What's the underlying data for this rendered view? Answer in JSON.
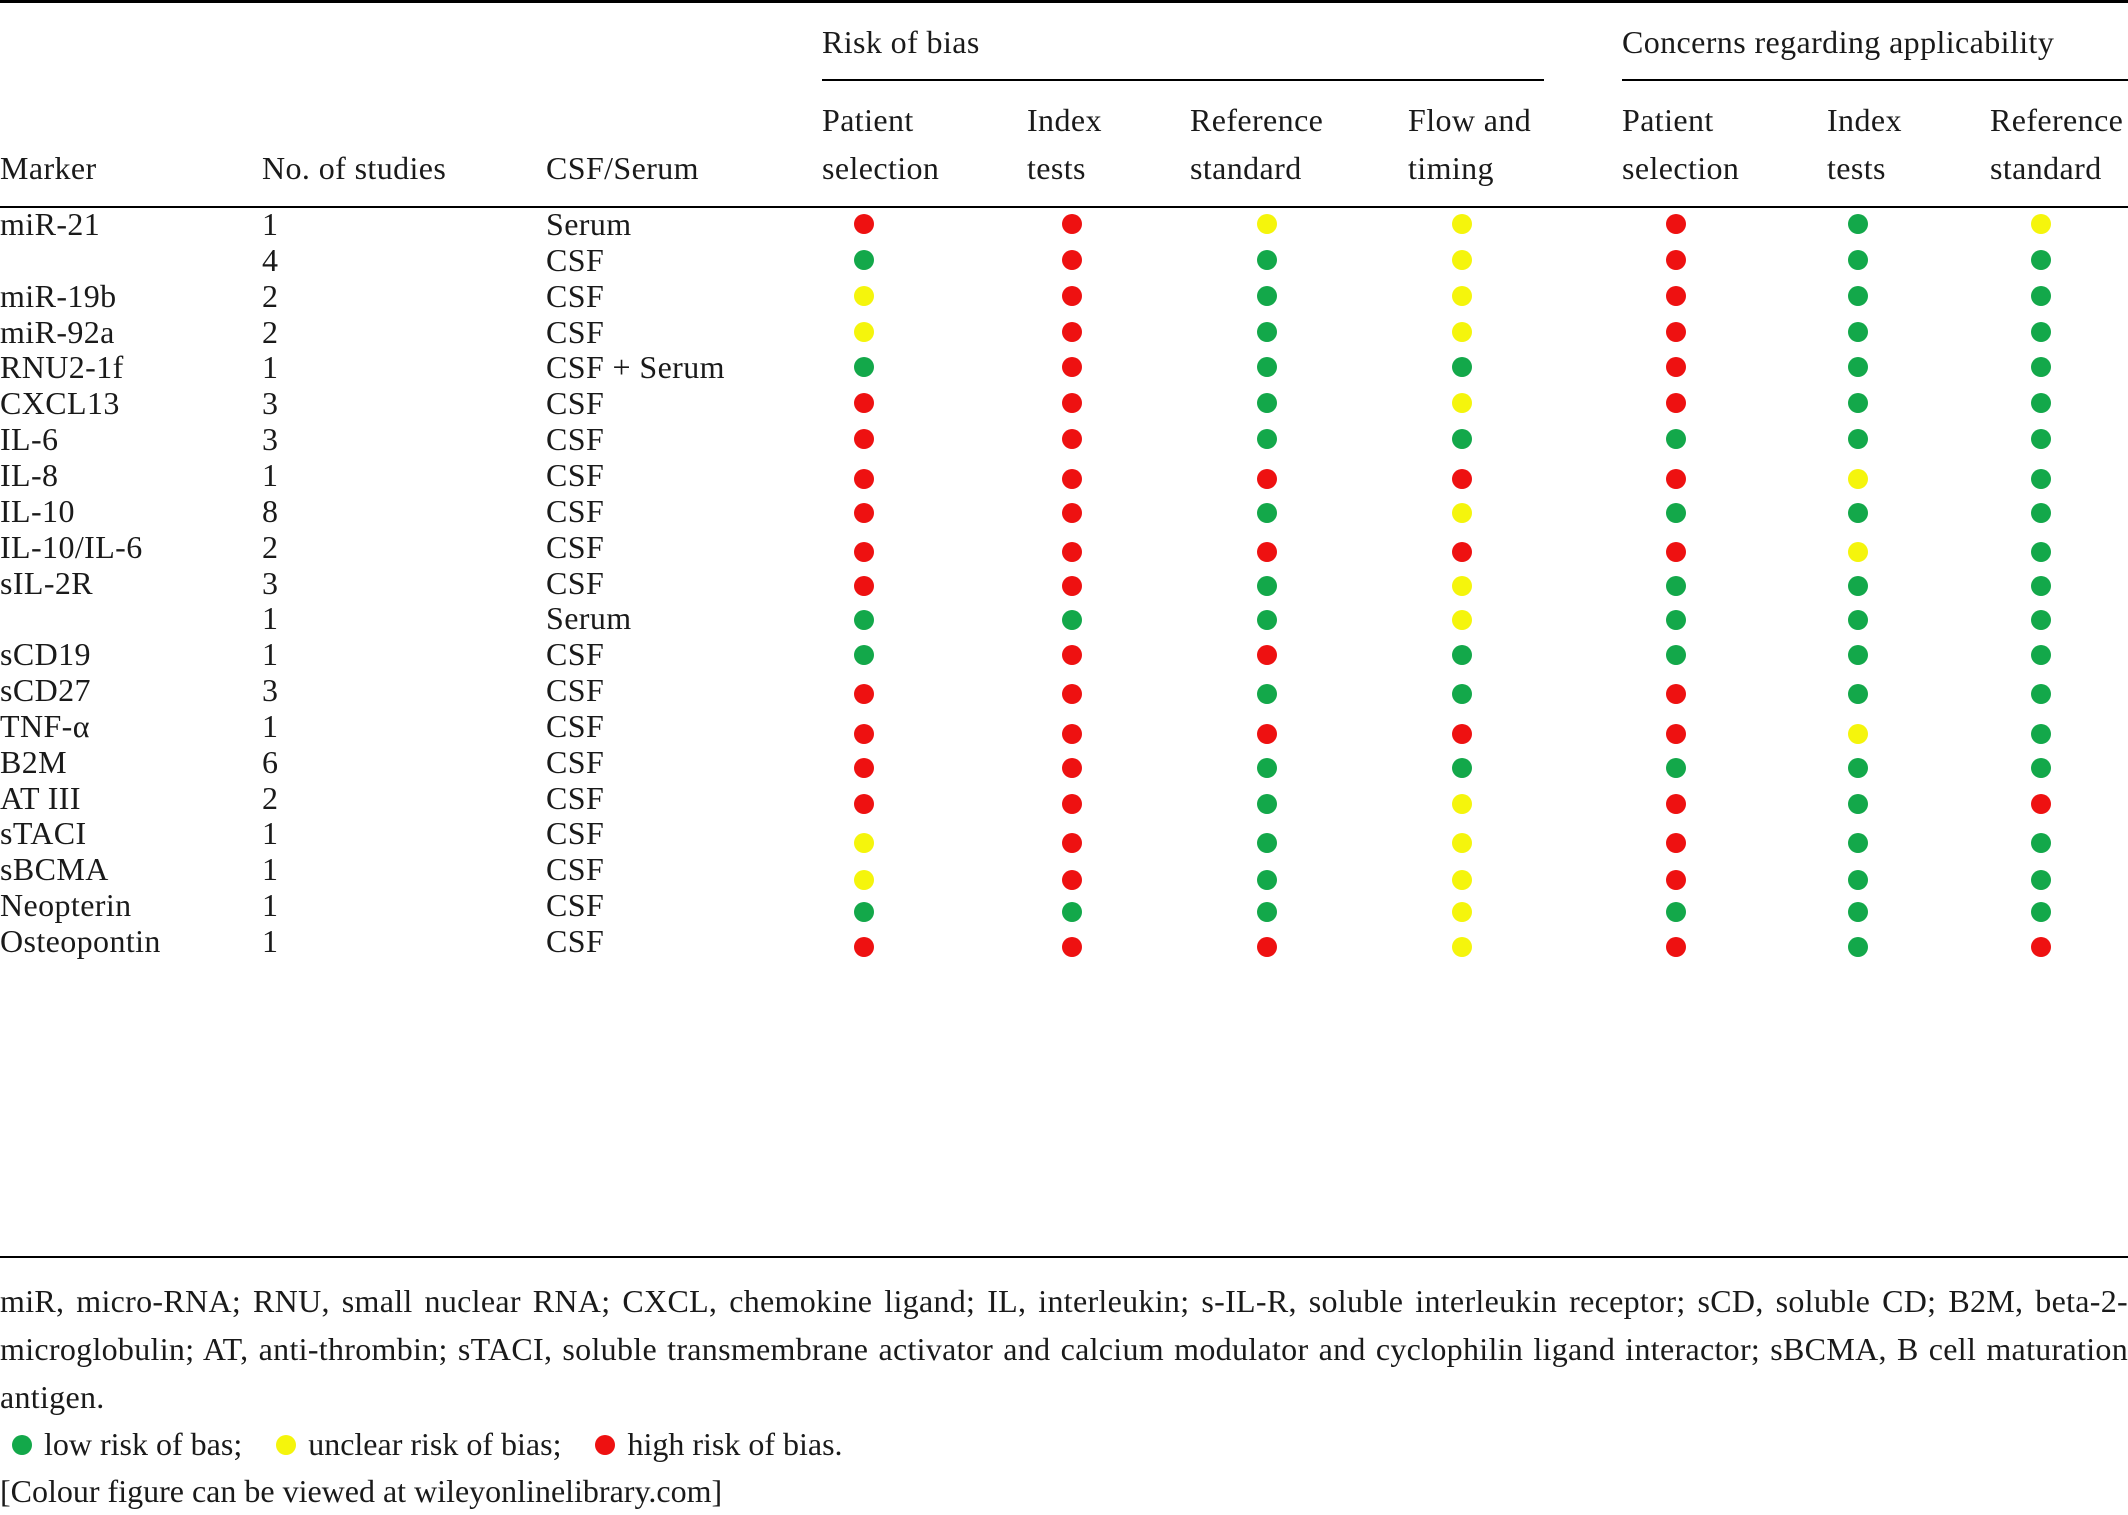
{
  "colors": {
    "low": "#13a84a",
    "unclear": "#f5f50c",
    "high": "#ee1111"
  },
  "header": {
    "group_bias": "Risk of bias",
    "group_applicability": "Concerns regarding applicability",
    "col_marker": "Marker",
    "col_n": "No. of studies",
    "col_source": "CSF/Serum",
    "rob_columns": [
      {
        "line1": "Patient",
        "line2": "selection"
      },
      {
        "line1": "Index",
        "line2": "tests"
      },
      {
        "line1": "Reference",
        "line2": "standard"
      },
      {
        "line1": "Flow and",
        "line2": "timing"
      }
    ],
    "app_columns": [
      {
        "line1": "Patient",
        "line2": "selection"
      },
      {
        "line1": "Index",
        "line2": "tests"
      },
      {
        "line1": "Reference",
        "line2": "standard"
      }
    ]
  },
  "rows": [
    {
      "marker": "miR-21",
      "n": "1",
      "source": "Serum",
      "bias": [
        "high",
        "high",
        "unclear",
        "unclear"
      ],
      "app": [
        "high",
        "low",
        "unclear"
      ]
    },
    {
      "marker": "",
      "n": "4",
      "source": "CSF",
      "bias": [
        "low",
        "high",
        "low",
        "unclear"
      ],
      "app": [
        "high",
        "low",
        "low"
      ]
    },
    {
      "marker": "miR-19b",
      "n": "2",
      "source": "CSF",
      "bias": [
        "unclear",
        "high",
        "low",
        "unclear"
      ],
      "app": [
        "high",
        "low",
        "low"
      ]
    },
    {
      "marker": "miR-92a",
      "n": "2",
      "source": "CSF",
      "bias": [
        "unclear",
        "high",
        "low",
        "unclear"
      ],
      "app": [
        "high",
        "low",
        "low"
      ]
    },
    {
      "marker": "RNU2-1f",
      "n": "1",
      "source": "CSF + Serum",
      "bias": [
        "low",
        "high",
        "low",
        "low"
      ],
      "app": [
        "high",
        "low",
        "low"
      ]
    },
    {
      "marker": "CXCL13",
      "n": "3",
      "source": "CSF",
      "bias": [
        "high",
        "high",
        "low",
        "unclear"
      ],
      "app": [
        "high",
        "low",
        "low"
      ]
    },
    {
      "marker": "IL-6",
      "n": "3",
      "source": "CSF",
      "bias": [
        "high",
        "high",
        "low",
        "low"
      ],
      "app": [
        "low",
        "low",
        "low"
      ]
    },
    {
      "marker": "IL-8",
      "n": "1",
      "source": "CSF",
      "bias": [
        "high",
        "high",
        "high",
        "high"
      ],
      "app": [
        "high",
        "unclear",
        "low"
      ]
    },
    {
      "marker": "IL-10",
      "n": "8",
      "source": "CSF",
      "bias": [
        "high",
        "high",
        "low",
        "unclear"
      ],
      "app": [
        "low",
        "low",
        "low"
      ]
    },
    {
      "marker": "IL-10/IL-6",
      "n": "2",
      "source": "CSF",
      "bias": [
        "high",
        "high",
        "high",
        "high"
      ],
      "app": [
        "high",
        "unclear",
        "low"
      ]
    },
    {
      "marker": "sIL-2R",
      "n": "3",
      "source": "CSF",
      "bias": [
        "high",
        "high",
        "low",
        "unclear"
      ],
      "app": [
        "low",
        "low",
        "low"
      ]
    },
    {
      "marker": "",
      "n": "1",
      "source": "Serum",
      "bias": [
        "low",
        "low",
        "low",
        "unclear"
      ],
      "app": [
        "low",
        "low",
        "low"
      ]
    },
    {
      "marker": "sCD19",
      "n": "1",
      "source": "CSF",
      "bias": [
        "low",
        "high",
        "high",
        "low"
      ],
      "app": [
        "low",
        "low",
        "low"
      ]
    },
    {
      "marker": "sCD27",
      "n": "3",
      "source": "CSF",
      "bias": [
        "high",
        "high",
        "low",
        "low"
      ],
      "app": [
        "high",
        "low",
        "low"
      ]
    },
    {
      "marker": "TNF-α",
      "n": "1",
      "source": "CSF",
      "bias": [
        "high",
        "high",
        "high",
        "high"
      ],
      "app": [
        "high",
        "unclear",
        "low"
      ]
    },
    {
      "marker": "B2M",
      "n": "6",
      "source": "CSF",
      "bias": [
        "high",
        "high",
        "low",
        "low"
      ],
      "app": [
        "low",
        "low",
        "low"
      ]
    },
    {
      "marker": "AT III",
      "n": "2",
      "source": "CSF",
      "bias": [
        "high",
        "high",
        "low",
        "unclear"
      ],
      "app": [
        "high",
        "low",
        "high"
      ]
    },
    {
      "marker": "sTACI",
      "n": "1",
      "source": "CSF",
      "bias": [
        "unclear",
        "high",
        "low",
        "unclear"
      ],
      "app": [
        "high",
        "low",
        "low"
      ]
    },
    {
      "marker": "sBCMA",
      "n": "1",
      "source": "CSF",
      "bias": [
        "unclear",
        "high",
        "low",
        "unclear"
      ],
      "app": [
        "high",
        "low",
        "low"
      ]
    },
    {
      "marker": "Neopterin",
      "n": "1",
      "source": "CSF",
      "bias": [
        "low",
        "low",
        "low",
        "unclear"
      ],
      "app": [
        "low",
        "low",
        "low"
      ]
    },
    {
      "marker": "Osteopontin",
      "n": "1",
      "source": "CSF",
      "bias": [
        "high",
        "high",
        "high",
        "unclear"
      ],
      "app": [
        "high",
        "low",
        "high"
      ]
    }
  ],
  "footnote": "miR, micro-RNA; RNU, small nuclear RNA; CXCL, chemokine ligand; IL, interleukin; s-IL-R, soluble interleukin receptor; sCD, soluble CD; B2M, beta-2-microglobulin; AT, anti-thrombin; sTACI, soluble transmembrane activator and calcium modulator and cyclophilin ligand interactor; sBCMA, B cell maturation antigen.",
  "legend": {
    "low": "low risk of bas;",
    "unclear": "unclear risk of bias;",
    "high": "high risk of bias."
  },
  "credit": "[Colour figure can be viewed at wileyonlinelibrary.com]"
}
